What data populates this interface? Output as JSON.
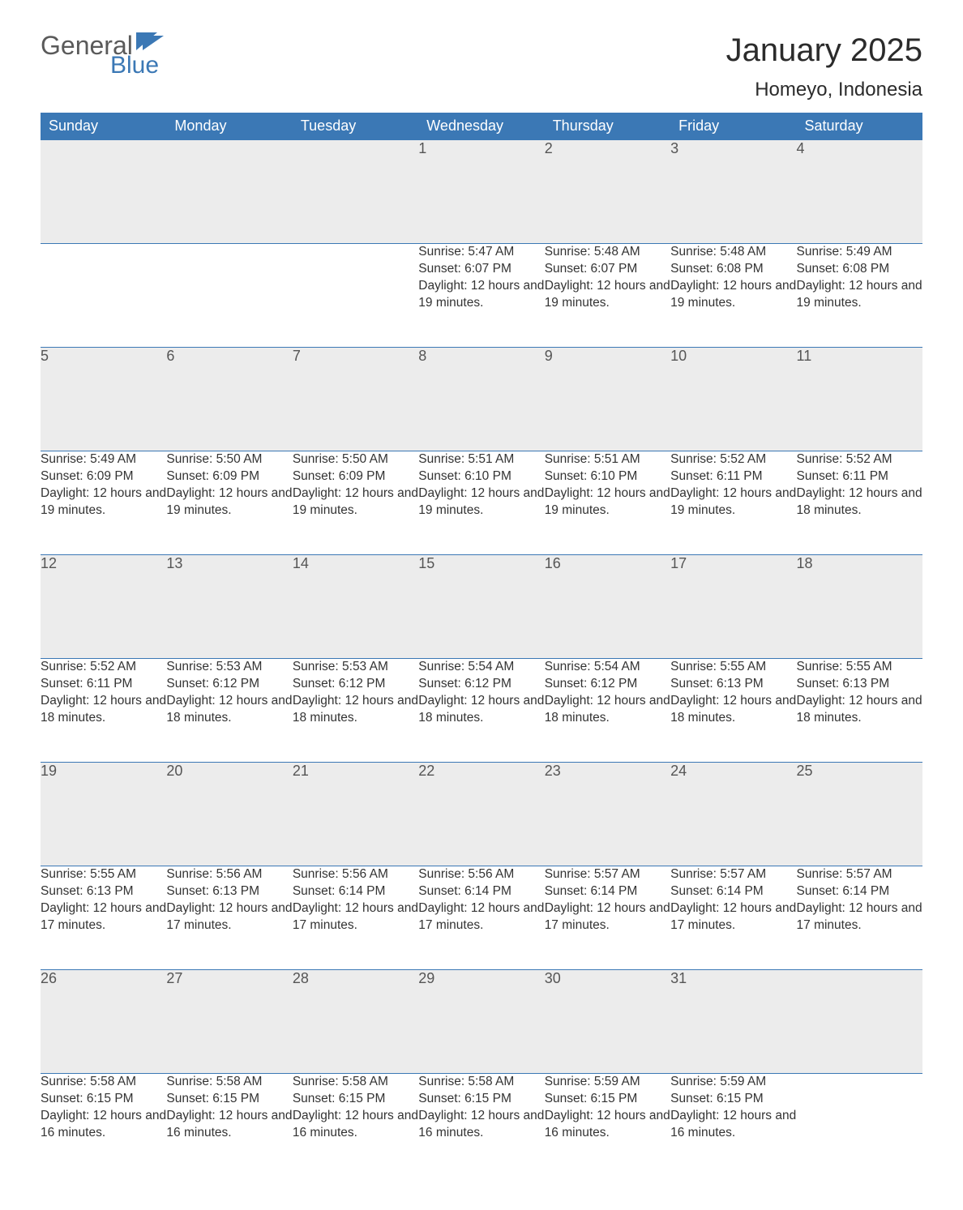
{
  "colors": {
    "header_bg": "#3b78b5",
    "header_text": "#ffffff",
    "daynum_bg": "#ececec",
    "daynum_text": "#555555",
    "body_text": "#333333",
    "logo_gray": "#5a5a5a",
    "logo_blue": "#3b78b5",
    "page_bg": "#ffffff",
    "row_border": "#3b78b5"
  },
  "logo": {
    "general": "General",
    "blue": "Blue"
  },
  "title": "January 2025",
  "location": "Homeyo, Indonesia",
  "weekdays": [
    "Sunday",
    "Monday",
    "Tuesday",
    "Wednesday",
    "Thursday",
    "Friday",
    "Saturday"
  ],
  "labels": {
    "sunrise": "Sunrise: ",
    "sunset": "Sunset: ",
    "daylight": "Daylight: "
  },
  "weeks": [
    [
      null,
      null,
      null,
      {
        "n": "1",
        "sr": "5:47 AM",
        "ss": "6:07 PM",
        "dl": "12 hours and 19 minutes."
      },
      {
        "n": "2",
        "sr": "5:48 AM",
        "ss": "6:07 PM",
        "dl": "12 hours and 19 minutes."
      },
      {
        "n": "3",
        "sr": "5:48 AM",
        "ss": "6:08 PM",
        "dl": "12 hours and 19 minutes."
      },
      {
        "n": "4",
        "sr": "5:49 AM",
        "ss": "6:08 PM",
        "dl": "12 hours and 19 minutes."
      }
    ],
    [
      {
        "n": "5",
        "sr": "5:49 AM",
        "ss": "6:09 PM",
        "dl": "12 hours and 19 minutes."
      },
      {
        "n": "6",
        "sr": "5:50 AM",
        "ss": "6:09 PM",
        "dl": "12 hours and 19 minutes."
      },
      {
        "n": "7",
        "sr": "5:50 AM",
        "ss": "6:09 PM",
        "dl": "12 hours and 19 minutes."
      },
      {
        "n": "8",
        "sr": "5:51 AM",
        "ss": "6:10 PM",
        "dl": "12 hours and 19 minutes."
      },
      {
        "n": "9",
        "sr": "5:51 AM",
        "ss": "6:10 PM",
        "dl": "12 hours and 19 minutes."
      },
      {
        "n": "10",
        "sr": "5:52 AM",
        "ss": "6:11 PM",
        "dl": "12 hours and 19 minutes."
      },
      {
        "n": "11",
        "sr": "5:52 AM",
        "ss": "6:11 PM",
        "dl": "12 hours and 18 minutes."
      }
    ],
    [
      {
        "n": "12",
        "sr": "5:52 AM",
        "ss": "6:11 PM",
        "dl": "12 hours and 18 minutes."
      },
      {
        "n": "13",
        "sr": "5:53 AM",
        "ss": "6:12 PM",
        "dl": "12 hours and 18 minutes."
      },
      {
        "n": "14",
        "sr": "5:53 AM",
        "ss": "6:12 PM",
        "dl": "12 hours and 18 minutes."
      },
      {
        "n": "15",
        "sr": "5:54 AM",
        "ss": "6:12 PM",
        "dl": "12 hours and 18 minutes."
      },
      {
        "n": "16",
        "sr": "5:54 AM",
        "ss": "6:12 PM",
        "dl": "12 hours and 18 minutes."
      },
      {
        "n": "17",
        "sr": "5:55 AM",
        "ss": "6:13 PM",
        "dl": "12 hours and 18 minutes."
      },
      {
        "n": "18",
        "sr": "5:55 AM",
        "ss": "6:13 PM",
        "dl": "12 hours and 18 minutes."
      }
    ],
    [
      {
        "n": "19",
        "sr": "5:55 AM",
        "ss": "6:13 PM",
        "dl": "12 hours and 17 minutes."
      },
      {
        "n": "20",
        "sr": "5:56 AM",
        "ss": "6:13 PM",
        "dl": "12 hours and 17 minutes."
      },
      {
        "n": "21",
        "sr": "5:56 AM",
        "ss": "6:14 PM",
        "dl": "12 hours and 17 minutes."
      },
      {
        "n": "22",
        "sr": "5:56 AM",
        "ss": "6:14 PM",
        "dl": "12 hours and 17 minutes."
      },
      {
        "n": "23",
        "sr": "5:57 AM",
        "ss": "6:14 PM",
        "dl": "12 hours and 17 minutes."
      },
      {
        "n": "24",
        "sr": "5:57 AM",
        "ss": "6:14 PM",
        "dl": "12 hours and 17 minutes."
      },
      {
        "n": "25",
        "sr": "5:57 AM",
        "ss": "6:14 PM",
        "dl": "12 hours and 17 minutes."
      }
    ],
    [
      {
        "n": "26",
        "sr": "5:58 AM",
        "ss": "6:15 PM",
        "dl": "12 hours and 16 minutes."
      },
      {
        "n": "27",
        "sr": "5:58 AM",
        "ss": "6:15 PM",
        "dl": "12 hours and 16 minutes."
      },
      {
        "n": "28",
        "sr": "5:58 AM",
        "ss": "6:15 PM",
        "dl": "12 hours and 16 minutes."
      },
      {
        "n": "29",
        "sr": "5:58 AM",
        "ss": "6:15 PM",
        "dl": "12 hours and 16 minutes."
      },
      {
        "n": "30",
        "sr": "5:59 AM",
        "ss": "6:15 PM",
        "dl": "12 hours and 16 minutes."
      },
      {
        "n": "31",
        "sr": "5:59 AM",
        "ss": "6:15 PM",
        "dl": "12 hours and 16 minutes."
      },
      null
    ]
  ]
}
